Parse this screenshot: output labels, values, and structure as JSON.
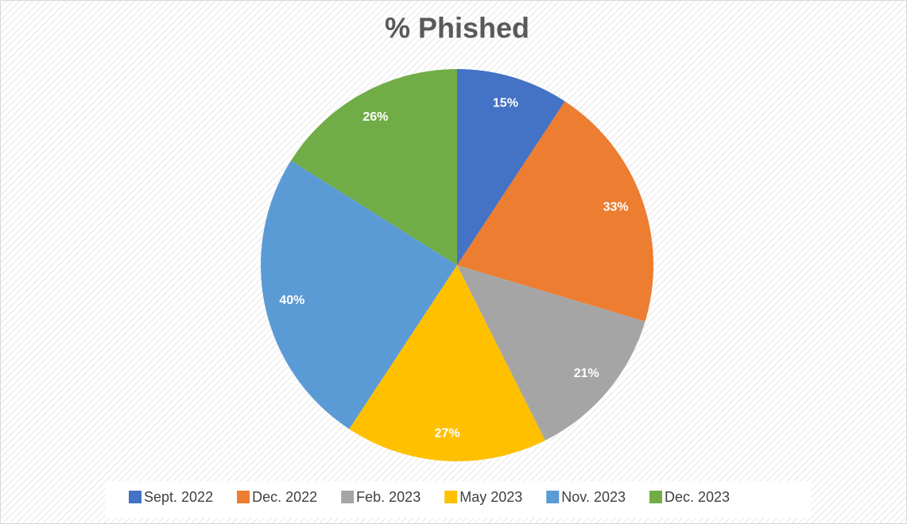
{
  "chart_data": {
    "type": "pie",
    "title": "% Phished",
    "categories": [
      "Sept. 2022",
      "Dec. 2022",
      "Feb. 2023",
      "May 2023",
      "Nov. 2023",
      "Dec. 2023"
    ],
    "values": [
      15,
      33,
      21,
      27,
      40,
      26
    ],
    "value_labels": [
      "15%",
      "33%",
      "21%",
      "27%",
      "40%",
      "26%"
    ],
    "colors": [
      "#4472c4",
      "#ed7d31",
      "#a5a5a5",
      "#ffc000",
      "#5b9bd5",
      "#70ad47"
    ],
    "legend": "bottom"
  }
}
